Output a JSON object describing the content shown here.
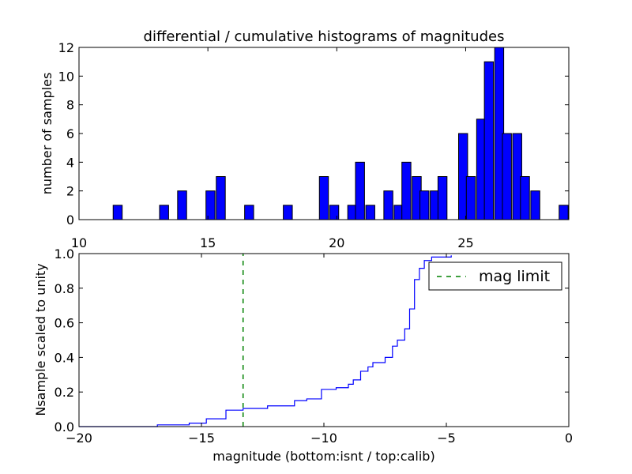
{
  "figure": {
    "title": "differential / cumulative histograms of magnitudes"
  },
  "chart_data": [
    {
      "type": "bar",
      "title": "differential / cumulative histograms of magnitudes",
      "xlabel": "",
      "ylabel": "number of samples",
      "xlim": [
        10,
        29
      ],
      "ylim": [
        0,
        12
      ],
      "xaxis_position": "top",
      "x_ticks": [
        10,
        15,
        20,
        25
      ],
      "y_ticks": [
        0,
        2,
        4,
        6,
        8,
        10,
        12
      ],
      "bin_width": 0.35,
      "bar_color": "#0000ff",
      "bins": [
        {
          "x": 11.5,
          "count": 1
        },
        {
          "x": 13.3,
          "count": 1
        },
        {
          "x": 14.0,
          "count": 2
        },
        {
          "x": 15.1,
          "count": 2
        },
        {
          "x": 15.5,
          "count": 3
        },
        {
          "x": 16.6,
          "count": 1
        },
        {
          "x": 18.1,
          "count": 1
        },
        {
          "x": 19.5,
          "count": 3
        },
        {
          "x": 19.9,
          "count": 1
        },
        {
          "x": 20.6,
          "count": 1
        },
        {
          "x": 20.9,
          "count": 4
        },
        {
          "x": 21.3,
          "count": 1
        },
        {
          "x": 22.0,
          "count": 2
        },
        {
          "x": 22.4,
          "count": 1
        },
        {
          "x": 22.7,
          "count": 4
        },
        {
          "x": 23.1,
          "count": 3
        },
        {
          "x": 23.4,
          "count": 2
        },
        {
          "x": 23.8,
          "count": 2
        },
        {
          "x": 24.1,
          "count": 3
        },
        {
          "x": 24.9,
          "count": 6
        },
        {
          "x": 25.2,
          "count": 3
        },
        {
          "x": 25.6,
          "count": 7
        },
        {
          "x": 25.9,
          "count": 11
        },
        {
          "x": 26.3,
          "count": 12
        },
        {
          "x": 26.6,
          "count": 6
        },
        {
          "x": 27.0,
          "count": 6
        },
        {
          "x": 27.3,
          "count": 3
        },
        {
          "x": 27.7,
          "count": 2
        },
        {
          "x": 28.8,
          "count": 1
        }
      ]
    },
    {
      "type": "line",
      "style": "step",
      "xlabel": "magnitude (bottom:isnt / top:calib)",
      "ylabel": "Nsample scaled to unity",
      "xlim": [
        -20,
        0
      ],
      "ylim": [
        0,
        1.0
      ],
      "x_ticks": [
        -20,
        -15,
        -10,
        -5,
        0
      ],
      "y_ticks": [
        "0.0",
        "0.2",
        "0.4",
        "0.6",
        "0.8",
        "1.0"
      ],
      "legend_position": "top-right",
      "series": [
        {
          "name": "",
          "color": "#0000ff",
          "x": [
            -20.0,
            -16.8,
            -15.5,
            -14.8,
            -14.0,
            -13.3,
            -12.3,
            -11.2,
            -10.7,
            -10.1,
            -9.5,
            -9.0,
            -8.8,
            -8.5,
            -8.2,
            -8.0,
            -7.5,
            -7.2,
            -7.0,
            -6.7,
            -6.5,
            -6.3,
            -6.1,
            -5.9,
            -5.6,
            -4.8,
            -4.8
          ],
          "y": [
            0.0,
            0.01,
            0.02,
            0.045,
            0.095,
            0.105,
            0.12,
            0.15,
            0.16,
            0.215,
            0.225,
            0.245,
            0.27,
            0.32,
            0.345,
            0.37,
            0.4,
            0.465,
            0.5,
            0.565,
            0.68,
            0.85,
            0.915,
            0.96,
            0.98,
            0.99,
            0.99
          ]
        },
        {
          "name": "mag limit",
          "color": "#008000",
          "style": "dashed",
          "x": [
            -13.3,
            -13.3
          ],
          "y": [
            0.0,
            1.0
          ]
        }
      ]
    }
  ]
}
